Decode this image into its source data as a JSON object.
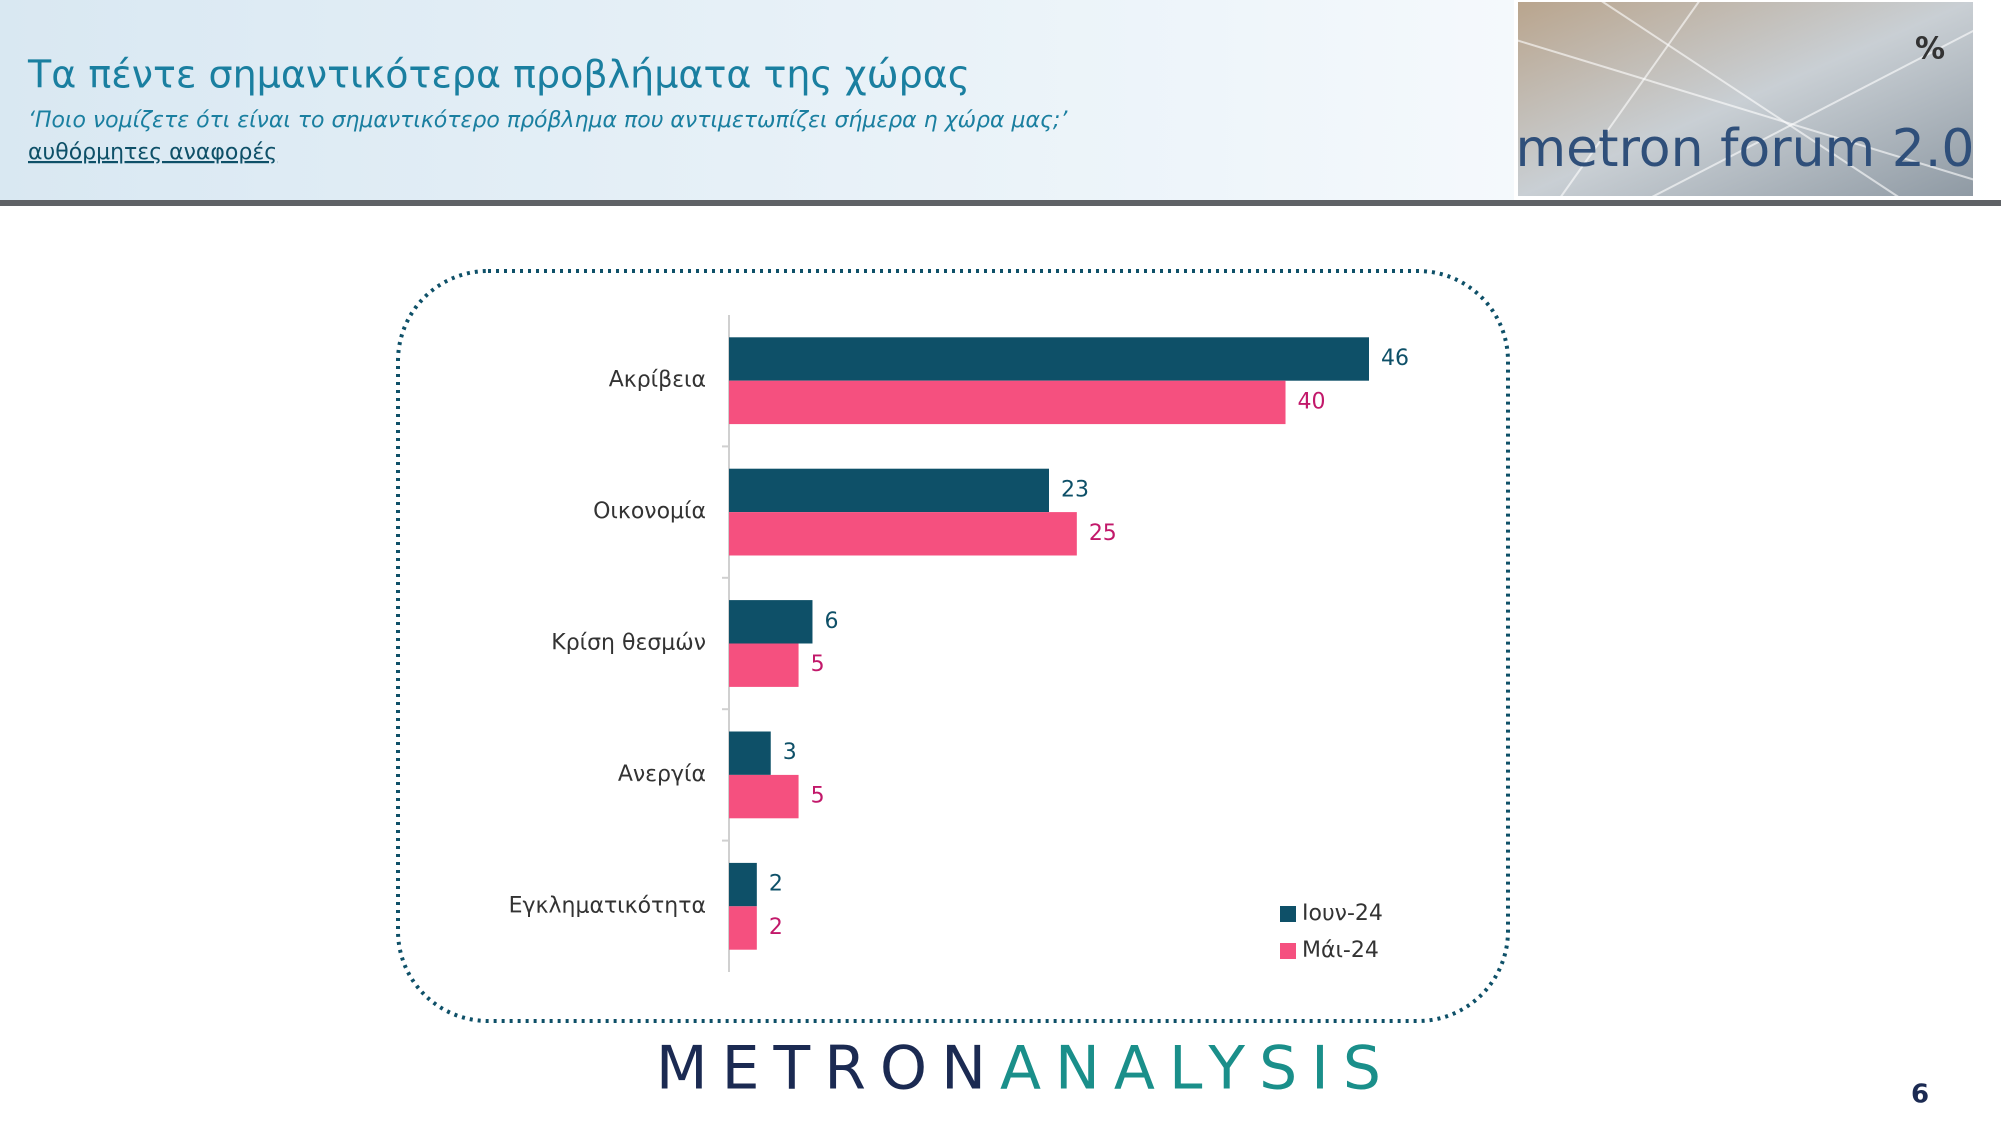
{
  "header": {
    "title": "Τα πέντε σημαντικότερα προβλήματα της χώρας",
    "subtitle": "‘Ποιο νομίζετε ότι είναι το σημαντικότερο πρόβλημα που αντιμετωπίζει σήμερα η χώρα μας;’",
    "note": "αυθόρμητες αναφορές",
    "badge": "%",
    "brand": "metron forum 2.0"
  },
  "chart_data": {
    "type": "bar",
    "orientation": "horizontal",
    "categories": [
      "Ακρίβεια",
      "Οικονομία",
      "Κρίση θεσμών",
      "Ανεργία",
      "Εγκληματικότητα"
    ],
    "series": [
      {
        "name": "Ιουν-24",
        "color": "#0e5068",
        "label_color": "#0e5068",
        "values": [
          46,
          23,
          6,
          3,
          2
        ]
      },
      {
        "name": "Μάι-24",
        "color": "#f5507f",
        "label_color": "#c2186a",
        "values": [
          40,
          25,
          5,
          5,
          2
        ]
      }
    ],
    "legend": "bottom-right"
  },
  "footer": {
    "logo_left": "METRON",
    "logo_right": "ANALYSIS",
    "page_number": "6"
  }
}
